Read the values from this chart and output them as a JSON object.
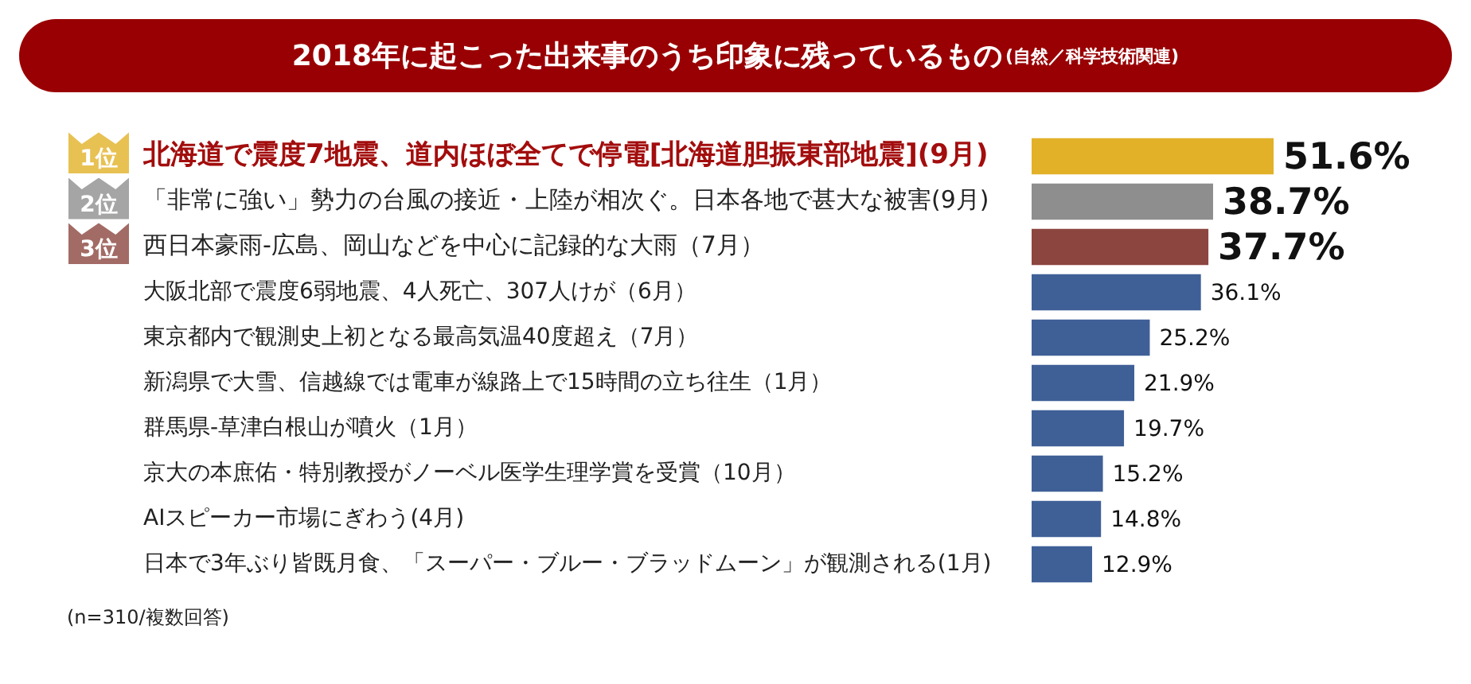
{
  "chart_data": {
    "type": "bar",
    "orientation": "horizontal",
    "title": "2018年に起こった出来事のうち印象に残っているもの",
    "subtitle": "(自然／科学技術関連)",
    "categories": [
      "北海道で震度7地震、道内ほぼ全てで停電[北海道胆振東部地震](9月)",
      "「非常に強い」勢力の台風の接近・上陸が相次ぐ。日本各地で甚大な被害(9月)",
      "西日本豪雨-広島、岡山などを中心に記録的な大雨（7月）",
      "大阪北部で震度6弱地震、4人死亡、307人けが（6月）",
      "東京都内で観測史上初となる最高気温40度超え（7月）",
      "新潟県で大雪、信越線では電車が線路上で15時間の立ち往生（1月）",
      "群馬県-草津白根山が噴火（1月）",
      "京大の本庶佑・特別教授がノーベル医学生理学賞を受賞（10月）",
      "AIスピーカー市場にぎわう(4月)",
      "日本で3年ぶり皆既月食、「スーパー・ブルー・ブラッドムーン」が観測される(1月)"
    ],
    "values": [
      51.6,
      38.7,
      37.7,
      36.1,
      25.2,
      21.9,
      19.7,
      15.2,
      14.8,
      12.9
    ],
    "colors": [
      "#e2b128",
      "#8e8e8e",
      "#8c463f",
      "#3f5f97",
      "#3f5f97",
      "#3f5f97",
      "#3f5f97",
      "#3f5f97",
      "#3f5f97",
      "#3f5f97"
    ],
    "value_labels": [
      "51.6%",
      "38.7%",
      "37.7%",
      "36.1%",
      "25.2%",
      "21.9%",
      "19.7%",
      "15.2%",
      "14.8%",
      "12.9%"
    ],
    "annotations": [
      "1位",
      "2位",
      "3位",
      "(n=310/複数回答)"
    ]
  }
}
